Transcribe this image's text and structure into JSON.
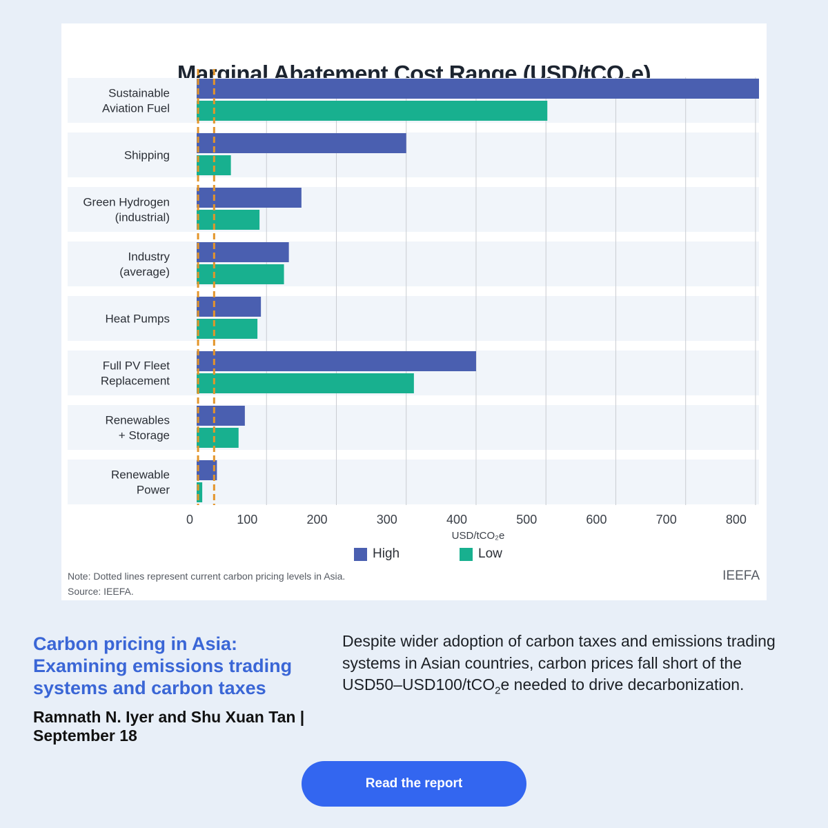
{
  "card": {
    "title_main": "Marginal Abatement Cost Range (USD/tCO",
    "title_sub": "2",
    "title_end": "e)",
    "note": "Note: Dotted lines represent current carbon pricing levels in Asia.",
    "source": "Source: IEEFA.",
    "brand": "IEEFA"
  },
  "chart_data": {
    "type": "bar",
    "orientation": "horizontal",
    "title": "Marginal Abatement Cost Range (USD/tCO₂e)",
    "categories": [
      [
        "Sustainable",
        "Aviation Fuel"
      ],
      [
        "Shipping"
      ],
      [
        "Green Hydrogen",
        "(industrial)"
      ],
      [
        "Industry",
        "(average)"
      ],
      [
        "Heat Pumps"
      ],
      [
        "Full PV Fleet",
        "Replacement"
      ],
      [
        "Renewables",
        "+ Storage"
      ],
      [
        "Renewable",
        "Power"
      ]
    ],
    "series": [
      {
        "name": "High",
        "color": "#4a5fb0",
        "values": [
          805,
          300,
          150,
          132,
          92,
          400,
          69,
          29
        ]
      },
      {
        "name": "Low",
        "color": "#18b08f",
        "values": [
          502,
          49,
          90,
          125,
          87,
          311,
          60,
          8
        ]
      }
    ],
    "xlabel": "USD/tCO₂e",
    "xlim": [
      0,
      805
    ],
    "xticks": [
      0,
      100,
      200,
      300,
      400,
      500,
      600,
      700,
      800
    ],
    "reference_lines": [
      {
        "value": 2,
        "color": "#e3952b"
      },
      {
        "value": 25,
        "color": "#e3952b"
      }
    ],
    "grid": true,
    "legend_position": "bottom-center"
  },
  "article": {
    "headline": "Carbon pricing in Asia: Examining emissions trading systems and carbon taxes",
    "authors": "Ramnath N. Iyer and Shu Xuan Tan | September 18",
    "description_before": "Despite wider adoption of carbon taxes and emissions trading systems in Asian countries, carbon prices fall short of the USD50–USD100/tCO",
    "description_sub": "2",
    "description_after": "e needed to drive decarbonization.",
    "cta_label": "Read the report"
  }
}
